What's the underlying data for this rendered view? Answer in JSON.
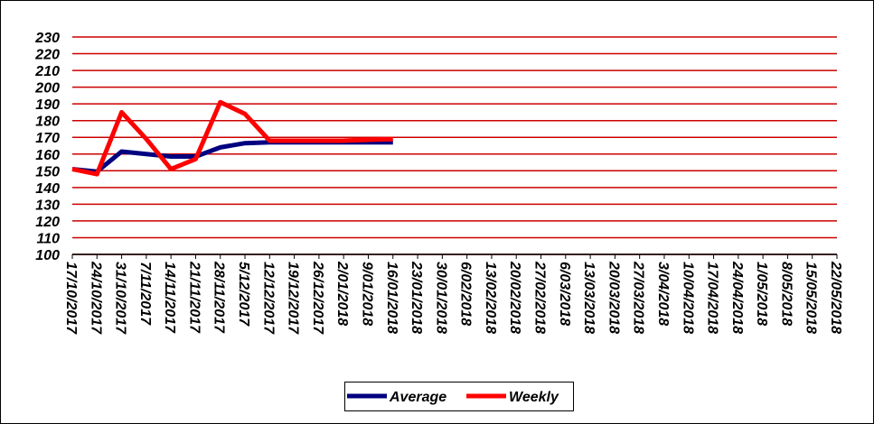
{
  "chart_data": {
    "type": "line",
    "categories": [
      "17/10/2017",
      "24/10/2017",
      "31/10/2017",
      "7/11/2017",
      "14/11/2017",
      "21/11/2017",
      "28/11/2017",
      "5/12/2017",
      "12/12/2017",
      "19/12/2017",
      "26/12/2017",
      "2/01/2018",
      "9/01/2018",
      "16/01/2018",
      "23/01/2018",
      "30/01/2018",
      "6/02/2018",
      "13/02/2018",
      "20/02/2018",
      "27/02/2018",
      "6/03/2018",
      "13/03/2018",
      "20/03/2018",
      "27/03/2018",
      "3/04/2018",
      "10/04/2018",
      "17/04/2018",
      "24/04/2018",
      "1/05/2018",
      "8/05/2018",
      "15/05/2018",
      "22/05/2018"
    ],
    "series": [
      {
        "name": "Average",
        "color": "#000080",
        "values": [
          151,
          149.5,
          161.5,
          160,
          158.5,
          158.5,
          164,
          166.5,
          167,
          167,
          167,
          167,
          167,
          167,
          null,
          null,
          null,
          null,
          null,
          null,
          null,
          null,
          null,
          null,
          null,
          null,
          null,
          null,
          null,
          null,
          null,
          null
        ]
      },
      {
        "name": "Weekly",
        "color": "#ff0000",
        "values": [
          151,
          148,
          185,
          169,
          151,
          157,
          191,
          184,
          168,
          168,
          168,
          168,
          168.5,
          169,
          null,
          null,
          null,
          null,
          null,
          null,
          null,
          null,
          null,
          null,
          null,
          null,
          null,
          null,
          null,
          null,
          null,
          null
        ]
      }
    ],
    "ylim": [
      100,
      230
    ],
    "yticks": [
      100,
      110,
      120,
      130,
      140,
      150,
      160,
      170,
      180,
      190,
      200,
      210,
      220,
      230
    ],
    "grid": true,
    "grid_color": "#cc0000",
    "legend": "bottom"
  }
}
